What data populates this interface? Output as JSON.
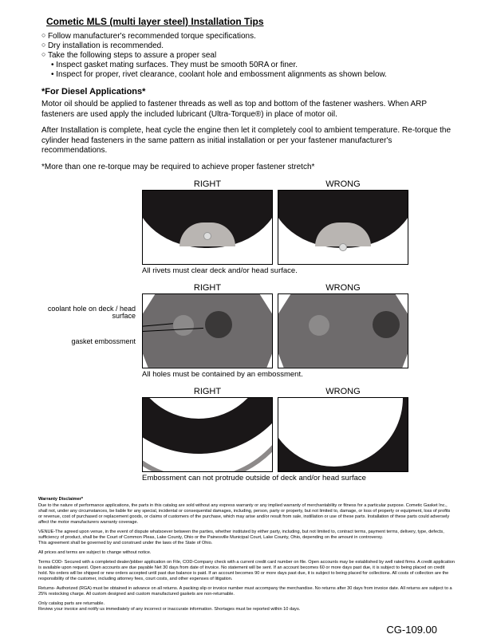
{
  "title": "Cometic MLS (multi layer steel) Installation Tips",
  "bullets": {
    "b1a": "Follow manufacturer's recommended torque specifications.",
    "b1b": "Dry installation is recommended.",
    "b1c": "Take the following steps to assure a proper seal",
    "b2a": "Inspect gasket mating surfaces.  They must be smooth 50RA or finer.",
    "b2b": "Inspect for proper, rivet clearance, coolant hole and embossment alignments as shown below."
  },
  "diesel": {
    "heading": "*For Diesel Applications*",
    "p1": "Motor oil should be applied to fastener threads as well as top and bottom of the fastener washers. When ARP fasteners are used apply the included lubricant (Ultra-Torque®) in place of motor oil.",
    "p2": "After Installation is complete, heat cycle the engine then let it completely cool to ambient temperature. Re-torque the cylinder head fasteners in the same pattern as initial installation or per your fastener manufacturer's recommendations.",
    "note": "*More than one re-torque may be required to achieve proper fastener stretch*"
  },
  "labels": {
    "right": "RIGHT",
    "wrong": "WRONG",
    "coolant": "coolant hole on deck / head surface",
    "gasket": "gasket embossment"
  },
  "captions": {
    "c1": "All rivets must clear deck and/or head surface.",
    "c2": "All holes must be contained by an embossment.",
    "c3": "Embossment can not protrude outside of deck and/or head surface"
  },
  "disclaimer": {
    "h": "Warranty Disclaimer*",
    "p1": "Due to the nature of performance applications, the parts in this catalog are sold without any express warranty or any implied warranty of merchantability or fitness for a particular purpose.  Cometic Gasket Inc., shall not, under any circumstances, be liable for any special, incidental or consequential damages, including, person, party or property, but not limited to, damage, or loss of property or equipment, loss of profits or revenue, cost of purchased or replacement goods, or claims of customers of the purchase, which may arise and/or result from sale, instillation or use of these parts.  Installation of these parts could adversely affect the motor manufacturers warranty coverage.",
    "p2": "VENUE-The agreed upon venue, in the event of dispute whatsoever between the parties, whether instituted by either party, including, but not limited to, contract terms, payment terms, delivery, type, defects, sufficiency of product, shall be the Court of Common Pleas, Lake County, Ohio or the Painesville Municipal Court, Lake County, Ohio, depending on the amount in controversy.",
    "p2b": "This agreement shall be governed by and construed under the laws of the State of Ohio.",
    "p3": "All prices and terms are subject to change without notice.",
    "p4": "Terms COD- Secured with a completed dealer/jobber application on File, COD-Company check with a current credit card number on file.  Open accounts may be established by well rated firms.  A credit application is available upon request.  Open accounts are due payable Net 30 days from date of invoice.  No statement will be sent.  If an account becomes 60 or more days past due, it is subject to being placed on credit hold.  No orders will be shipped or new orders accepted until past due balance is paid.  If an account becomes 90 or more days past due, it is subject to being placed for collections.  All costs of collection are the responsibility of the customer, including attorney fees, court costs, and other expenses of litigation.",
    "p5": "Returns- Authorized (RGA) must be obtained in advance on all returns.  A packing slip or invoice number must accompany the merchandise.  No returns after 30 days from invoice date.  All returns are subject to a 25% restocking charge.  All custom designed and custom manufactured gaskets are non-returnable.",
    "p6": "Only catalog parts are returnable.",
    "p6b": "Review your invoice and notify us immediately of any incorrect or inaccurate information.  Shortages must be reported within 10 days."
  },
  "footer": "CG-109.00",
  "colors": {
    "text": "#000000",
    "bg": "#ffffff",
    "dark": "#1a1718",
    "mid": "#6e6b6c",
    "light": "#b9b5b2"
  }
}
